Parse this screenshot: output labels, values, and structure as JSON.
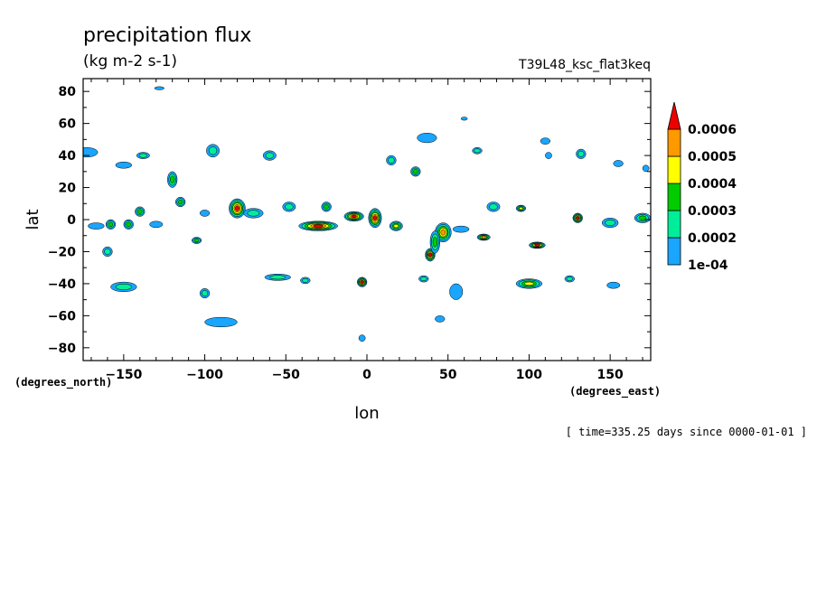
{
  "chart_data": {
    "type": "contour-map",
    "title": "precipitation flux",
    "units": "(kg m-2 s-1)",
    "run_label": "T39L48_ksc_flat3keq",
    "xlabel": "lon",
    "ylabel": "lat",
    "x_units_label": "(degrees_east)",
    "y_units_label": "(degrees_north)",
    "xlim": [
      -175,
      175
    ],
    "ylim": [
      -88,
      88
    ],
    "x_ticks": [
      -150,
      -100,
      -50,
      0,
      50,
      100,
      150
    ],
    "y_ticks": [
      -80,
      -60,
      -40,
      -20,
      0,
      20,
      40,
      60,
      80
    ],
    "footer": "[ time=335.25 days since 0000-01-01 ]",
    "levels": [
      "1e-04",
      "0.0002",
      "0.0003",
      "0.0004",
      "0.0005",
      "0.0006"
    ],
    "level_colors": [
      "#1aa5ff",
      "#00ee99",
      "#00cc00",
      "#ffff00",
      "#ff9900",
      "#ee0000"
    ],
    "features": [
      {
        "lon": -173,
        "lat": 42,
        "rx": 7,
        "ry": 3,
        "level": 1
      },
      {
        "lon": -150,
        "lat": 34,
        "rx": 5,
        "ry": 2,
        "level": 1
      },
      {
        "lon": -138,
        "lat": 40,
        "rx": 4,
        "ry": 2,
        "level": 2
      },
      {
        "lon": -95,
        "lat": 43,
        "rx": 4,
        "ry": 4,
        "level": 2
      },
      {
        "lon": -60,
        "lat": 40,
        "rx": 4,
        "ry": 3,
        "level": 2
      },
      {
        "lon": -120,
        "lat": 25,
        "rx": 3,
        "ry": 5,
        "level": 3
      },
      {
        "lon": -115,
        "lat": 11,
        "rx": 3,
        "ry": 3,
        "level": 3
      },
      {
        "lon": -80,
        "lat": 7,
        "rx": 5,
        "ry": 6,
        "level": 6
      },
      {
        "lon": -70,
        "lat": 4,
        "rx": 6,
        "ry": 3,
        "level": 2
      },
      {
        "lon": -48,
        "lat": 8,
        "rx": 4,
        "ry": 3,
        "level": 2
      },
      {
        "lon": -25,
        "lat": 8,
        "rx": 3,
        "ry": 3,
        "level": 3
      },
      {
        "lon": -140,
        "lat": 5,
        "rx": 3,
        "ry": 3,
        "level": 3
      },
      {
        "lon": -158,
        "lat": -3,
        "rx": 3,
        "ry": 3,
        "level": 3
      },
      {
        "lon": -147,
        "lat": -3,
        "rx": 3,
        "ry": 3,
        "level": 3
      },
      {
        "lon": -130,
        "lat": -3,
        "rx": 4,
        "ry": 2,
        "level": 1
      },
      {
        "lon": -100,
        "lat": 4,
        "rx": 3,
        "ry": 2,
        "level": 1
      },
      {
        "lon": -105,
        "lat": -13,
        "rx": 3,
        "ry": 2,
        "level": 3
      },
      {
        "lon": -167,
        "lat": -4,
        "rx": 5,
        "ry": 2,
        "level": 1
      },
      {
        "lon": -160,
        "lat": -20,
        "rx": 3,
        "ry": 3,
        "level": 2
      },
      {
        "lon": -30,
        "lat": -4,
        "rx": 12,
        "ry": 3,
        "level": 6
      },
      {
        "lon": -8,
        "lat": 2,
        "rx": 6,
        "ry": 3,
        "level": 6
      },
      {
        "lon": 5,
        "lat": 1,
        "rx": 4,
        "ry": 6,
        "level": 6
      },
      {
        "lon": 18,
        "lat": -4,
        "rx": 4,
        "ry": 3,
        "level": 4
      },
      {
        "lon": 30,
        "lat": 30,
        "rx": 3,
        "ry": 3,
        "level": 3
      },
      {
        "lon": 15,
        "lat": 37,
        "rx": 3,
        "ry": 3,
        "level": 2
      },
      {
        "lon": 47,
        "lat": -8,
        "rx": 5,
        "ry": 6,
        "level": 5
      },
      {
        "lon": 39,
        "lat": -22,
        "rx": 3,
        "ry": 4,
        "level": 6
      },
      {
        "lon": 42,
        "lat": -14,
        "rx": 3,
        "ry": 7,
        "level": 3
      },
      {
        "lon": 58,
        "lat": -6,
        "rx": 5,
        "ry": 2,
        "level": 1
      },
      {
        "lon": 72,
        "lat": -11,
        "rx": 4,
        "ry": 2,
        "level": 5
      },
      {
        "lon": 78,
        "lat": 8,
        "rx": 4,
        "ry": 3,
        "level": 2
      },
      {
        "lon": 95,
        "lat": 7,
        "rx": 3,
        "ry": 2,
        "level": 4
      },
      {
        "lon": 105,
        "lat": -16,
        "rx": 5,
        "ry": 2,
        "level": 6
      },
      {
        "lon": 130,
        "lat": 1,
        "rx": 3,
        "ry": 3,
        "level": 6
      },
      {
        "lon": 150,
        "lat": -2,
        "rx": 5,
        "ry": 3,
        "level": 2
      },
      {
        "lon": 170,
        "lat": 1,
        "rx": 5,
        "ry": 3,
        "level": 3
      },
      {
        "lon": 68,
        "lat": 43,
        "rx": 3,
        "ry": 2,
        "level": 2
      },
      {
        "lon": 37,
        "lat": 51,
        "rx": 6,
        "ry": 3,
        "level": 1
      },
      {
        "lon": 110,
        "lat": 49,
        "rx": 3,
        "ry": 2,
        "level": 1
      },
      {
        "lon": 132,
        "lat": 41,
        "rx": 3,
        "ry": 3,
        "level": 2
      },
      {
        "lon": 155,
        "lat": 35,
        "rx": 3,
        "ry": 2,
        "level": 1
      },
      {
        "lon": -150,
        "lat": -42,
        "rx": 8,
        "ry": 3,
        "level": 2
      },
      {
        "lon": -100,
        "lat": -46,
        "rx": 3,
        "ry": 3,
        "level": 2
      },
      {
        "lon": -55,
        "lat": -36,
        "rx": 8,
        "ry": 2,
        "level": 2
      },
      {
        "lon": -38,
        "lat": -38,
        "rx": 3,
        "ry": 2,
        "level": 2
      },
      {
        "lon": -3,
        "lat": -39,
        "rx": 3,
        "ry": 3,
        "level": 6
      },
      {
        "lon": 35,
        "lat": -37,
        "rx": 3,
        "ry": 2,
        "level": 2
      },
      {
        "lon": 55,
        "lat": -45,
        "rx": 4,
        "ry": 5,
        "level": 1
      },
      {
        "lon": 100,
        "lat": -40,
        "rx": 8,
        "ry": 3,
        "level": 4
      },
      {
        "lon": 125,
        "lat": -37,
        "rx": 3,
        "ry": 2,
        "level": 2
      },
      {
        "lon": 152,
        "lat": -41,
        "rx": 4,
        "ry": 2,
        "level": 1
      },
      {
        "lon": -90,
        "lat": -64,
        "rx": 10,
        "ry": 3,
        "level": 1
      },
      {
        "lon": 45,
        "lat": -62,
        "rx": 3,
        "ry": 2,
        "level": 1
      },
      {
        "lon": -3,
        "lat": -74,
        "rx": 2,
        "ry": 2,
        "level": 1
      },
      {
        "lon": -128,
        "lat": 82,
        "rx": 3,
        "ry": 1,
        "level": 1
      },
      {
        "lon": 60,
        "lat": 63,
        "rx": 2,
        "ry": 1,
        "level": 1
      },
      {
        "lon": 112,
        "lat": 40,
        "rx": 2,
        "ry": 2,
        "level": 1
      },
      {
        "lon": 172,
        "lat": 32,
        "rx": 2,
        "ry": 2,
        "level": 1
      }
    ]
  }
}
